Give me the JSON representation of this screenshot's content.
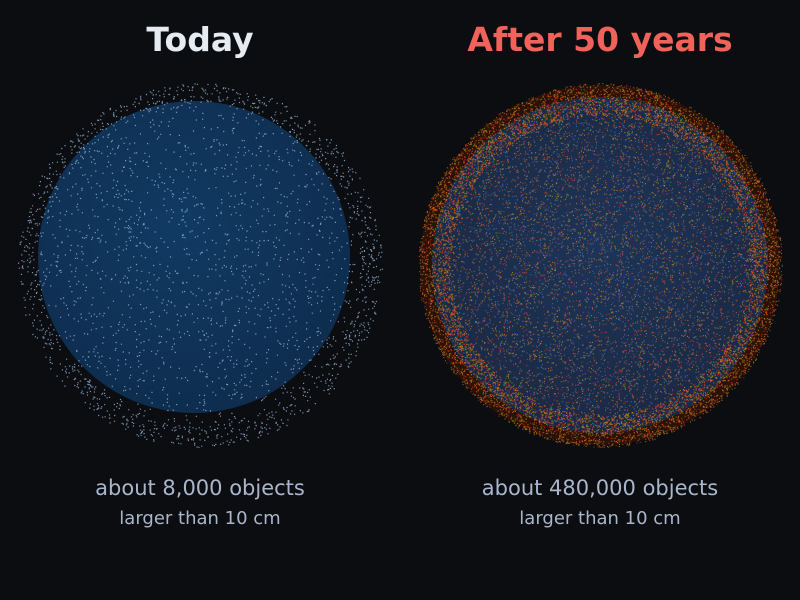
{
  "colors": {
    "background": "#0b0d11",
    "today_title": "#e6ebf2",
    "future_title": "#f0625a",
    "caption": "#a9b6cc",
    "earth": "#0e2c4d",
    "today_debris": "#9fc0e6",
    "future_debris_red": "#ff3a12",
    "future_debris_orange": "#ff8a10",
    "future_debris_yellow": "#d8c21c",
    "future_debris_blue": "#5a8ad8"
  },
  "panels": [
    {
      "title": "Today",
      "count_text": "about 8,000 objects",
      "size_text": "larger than 10 cm",
      "objects": 8000
    },
    {
      "title": "After 50 years",
      "count_text": "about 480,000 objects",
      "size_text": "larger than 10 cm",
      "objects": 480000
    }
  ]
}
